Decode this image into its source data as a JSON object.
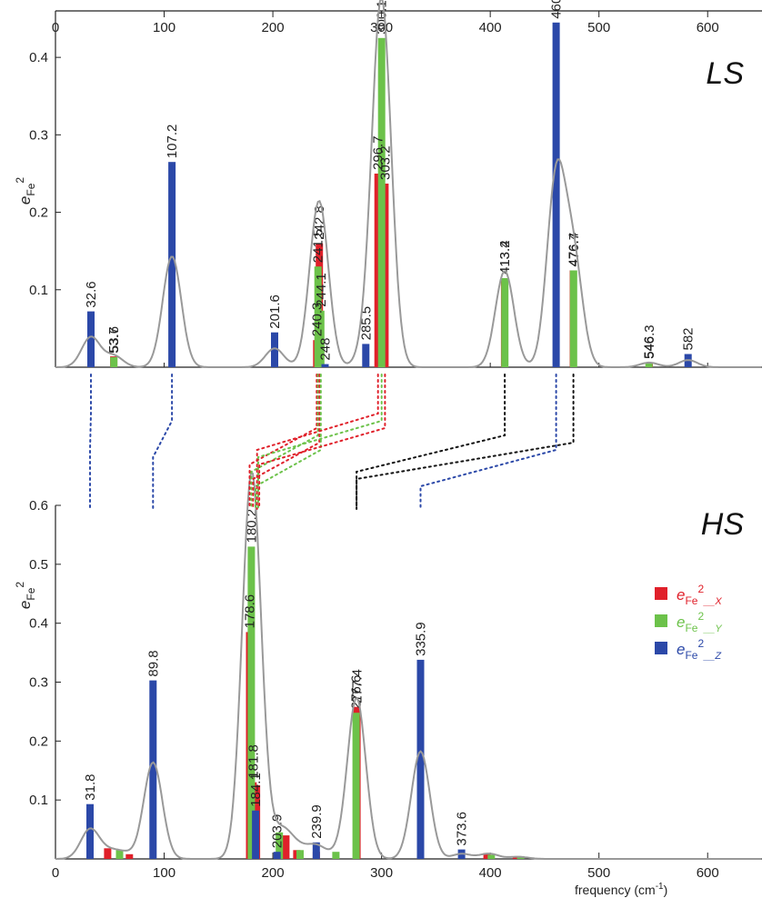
{
  "colors": {
    "x": "#e0202a",
    "y": "#6cc24a",
    "z": "#2b48a8",
    "black": "#111111",
    "envelope": "#999999"
  },
  "xaxis": {
    "ticks": [
      0,
      100,
      200,
      300,
      400,
      500,
      600
    ],
    "label": "frequency (cm",
    "label_sup": "-1",
    "label_close": ")"
  },
  "ylabel": {
    "base": "e",
    "sub": "Fe",
    "sup": "2"
  },
  "legend": [
    {
      "key": "x",
      "base": "e",
      "sub": "Fe",
      "sup": "2",
      "suffix": "__X"
    },
    {
      "key": "y",
      "base": "e",
      "sub": "Fe",
      "sup": "2",
      "suffix": "__Y"
    },
    {
      "key": "z",
      "base": "e",
      "sub": "Fe",
      "sup": "2",
      "suffix": "__Z"
    }
  ],
  "chart_data": [
    {
      "type": "bar",
      "title": "LS",
      "xlabel": "",
      "ylabel": "eFe2",
      "xlim": [
        0,
        650
      ],
      "ylim": [
        0,
        0.46
      ],
      "yticks": [
        0.1,
        0.2,
        0.3,
        0.4
      ],
      "series": [
        {
          "key": "x",
          "points": [
            [
              53.6,
              0.014
            ],
            [
              240.3,
              0.035
            ],
            [
              242.8,
              0.16
            ],
            [
              296.7,
              0.25
            ],
            [
              303.2,
              0.237
            ],
            [
              413.2,
              0.115
            ],
            [
              476.4,
              0.125
            ],
            [
              546.3,
              0.006
            ]
          ]
        },
        {
          "key": "y",
          "points": [
            [
              53.7,
              0.013
            ],
            [
              241.5,
              0.13
            ],
            [
              244.1,
              0.073
            ],
            [
              300.1,
              0.425
            ],
            [
              413.4,
              0.115
            ],
            [
              476.7,
              0.125
            ],
            [
              546,
              0.005
            ]
          ]
        },
        {
          "key": "z",
          "points": [
            [
              32.6,
              0.072
            ],
            [
              107.2,
              0.265
            ],
            [
              201.6,
              0.045
            ],
            [
              248,
              0.004
            ],
            [
              285.5,
              0.03
            ],
            [
              460.6,
              0.445
            ],
            [
              582,
              0.017
            ]
          ]
        }
      ],
      "labels": [
        [
          32.6,
          0.072,
          "32.6"
        ],
        [
          53.6,
          0.014,
          "53.6"
        ],
        [
          53.7,
          0.013,
          "53.7"
        ],
        [
          107.2,
          0.265,
          "107.2"
        ],
        [
          201.6,
          0.045,
          "201.6"
        ],
        [
          240.3,
          0.035,
          "240.3"
        ],
        [
          241.5,
          0.13,
          "241.5"
        ],
        [
          242.8,
          0.16,
          "242.8"
        ],
        [
          244.1,
          0.073,
          "244.1"
        ],
        [
          248,
          0.004,
          "248"
        ],
        [
          285.5,
          0.03,
          "285.5"
        ],
        [
          296.7,
          0.25,
          "296.7"
        ],
        [
          300.1,
          0.425,
          "300.1"
        ],
        [
          303.2,
          0.237,
          "303.2"
        ],
        [
          413.2,
          0.115,
          "413.2"
        ],
        [
          413.4,
          0.115,
          "413.4"
        ],
        [
          460.6,
          0.445,
          "460.6"
        ],
        [
          476.4,
          0.125,
          "476.4"
        ],
        [
          476.7,
          0.125,
          "476.7"
        ],
        [
          546,
          0.006,
          "546"
        ],
        [
          546.3,
          0.006,
          "546.3"
        ],
        [
          582,
          0.017,
          "582"
        ]
      ]
    },
    {
      "type": "bar",
      "title": "HS",
      "xlabel": "frequency (cm-1)",
      "ylabel": "eFe2",
      "xlim": [
        0,
        650
      ],
      "ylim": [
        0,
        0.6
      ],
      "yticks": [
        0.1,
        0.2,
        0.3,
        0.4,
        0.5,
        0.6
      ],
      "series": [
        {
          "key": "x",
          "points": [
            [
              48,
              0.018
            ],
            [
              68,
              0.008
            ],
            [
              178.6,
              0.385
            ],
            [
              181.8,
              0.13
            ],
            [
              185,
              0.125
            ],
            [
              212,
              0.04
            ],
            [
              222,
              0.015
            ],
            [
              240,
              0.012
            ],
            [
              277.4,
              0.258
            ],
            [
              397,
              0.01
            ],
            [
              424,
              0.004
            ]
          ]
        },
        {
          "key": "y",
          "points": [
            [
              59,
              0.015
            ],
            [
              180.2,
              0.53
            ],
            [
              206,
              0.045
            ],
            [
              225,
              0.015
            ],
            [
              258,
              0.012
            ],
            [
              276.6,
              0.248
            ],
            [
              401,
              0.007
            ],
            [
              428,
              0.003
            ]
          ]
        },
        {
          "key": "z",
          "points": [
            [
              31.8,
              0.093
            ],
            [
              89.8,
              0.303
            ],
            [
              184.1,
              0.082
            ],
            [
              203.9,
              0.012
            ],
            [
              239.9,
              0.028
            ],
            [
              335.9,
              0.338
            ],
            [
              373.6,
              0.016
            ]
          ]
        }
      ],
      "labels": [
        [
          31.8,
          0.093,
          "31.8"
        ],
        [
          89.8,
          0.303,
          "89.8"
        ],
        [
          178.6,
          0.385,
          "178.6"
        ],
        [
          180.2,
          0.53,
          "180.2"
        ],
        [
          181.8,
          0.13,
          "181.8"
        ],
        [
          184.1,
          0.082,
          "184.1"
        ],
        [
          203.9,
          0.012,
          "203.9"
        ],
        [
          239.9,
          0.028,
          "239.9"
        ],
        [
          276.6,
          0.248,
          "276.6"
        ],
        [
          277.4,
          0.258,
          "277.4"
        ],
        [
          335.9,
          0.338,
          "335.9"
        ],
        [
          373.6,
          0.016,
          "373.6"
        ]
      ]
    }
  ],
  "connectors": [
    {
      "color": "z",
      "from": 32.6,
      "to": 31.8
    },
    {
      "color": "z",
      "from": 107.2,
      "to": 89.8
    },
    {
      "color": "x",
      "from": 240.3,
      "to": 178.6
    },
    {
      "color": "y",
      "from": 241.5,
      "to": 180.2
    },
    {
      "color": "x",
      "from": 242.8,
      "to": 181.8
    },
    {
      "color": "y",
      "from": 244.1,
      "to": 184.1
    },
    {
      "color": "x",
      "from": 296.7,
      "to": 185.5
    },
    {
      "color": "y",
      "from": 300.1,
      "to": 186.5
    },
    {
      "color": "x",
      "from": 303.2,
      "to": 187.5
    },
    {
      "color": "black",
      "from": 413.3,
      "to": 277
    },
    {
      "color": "black",
      "from": 476.5,
      "to": 277
    },
    {
      "color": "z",
      "from": 460.6,
      "to": 335.9
    }
  ]
}
